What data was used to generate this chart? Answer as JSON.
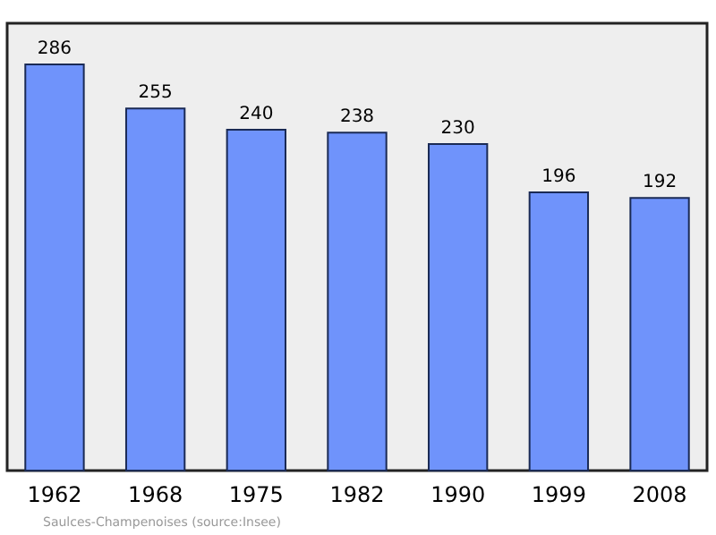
{
  "chart_data": {
    "type": "bar",
    "categories": [
      "1962",
      "1968",
      "1975",
      "1982",
      "1990",
      "1999",
      "2008"
    ],
    "values": [
      286,
      255,
      240,
      238,
      230,
      196,
      192
    ],
    "color": "#6f93fb",
    "data_labels": true,
    "ylim": [
      0,
      315
    ],
    "tick_labels": "x",
    "grid": false,
    "annotations": [
      "Saulces-Champenoises    (source:Insee)"
    ]
  }
}
